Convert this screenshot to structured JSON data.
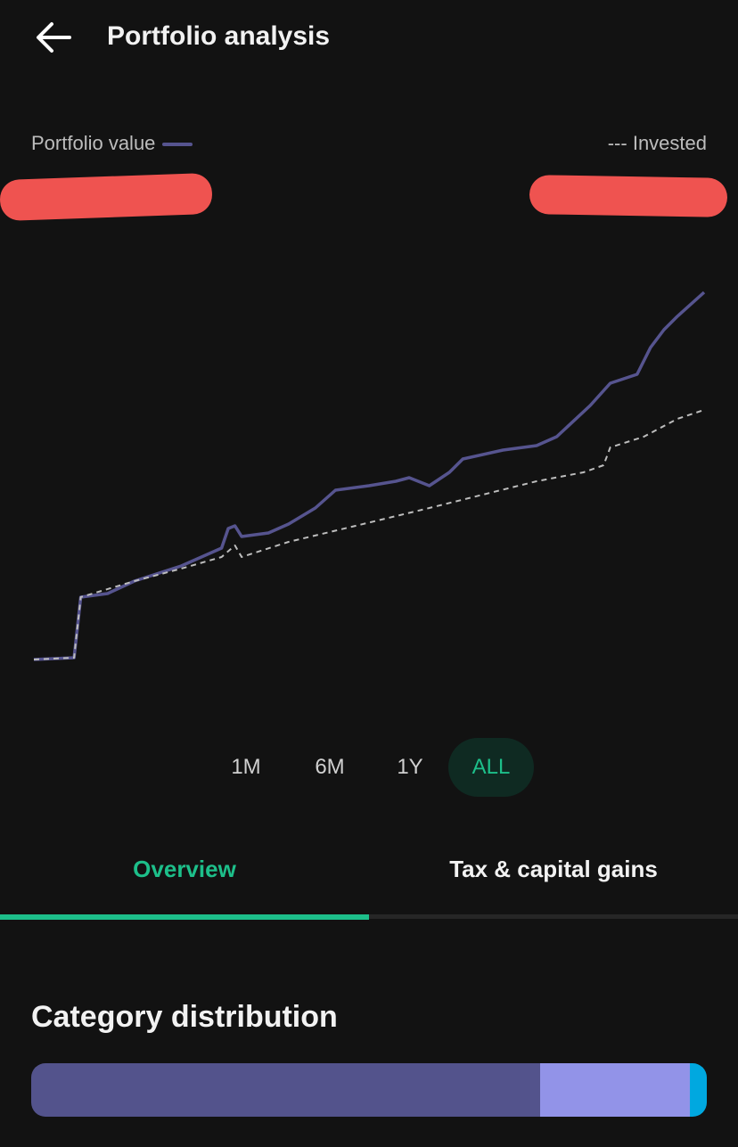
{
  "header": {
    "title": "Portfolio analysis",
    "back_icon": "arrow-left-icon"
  },
  "legend": {
    "portfolio_label": "Portfolio value",
    "invested_label": "--- Invested"
  },
  "colors": {
    "portfolio": "#56548f",
    "invested": "#bdbdbd",
    "accent": "#1dbf8a",
    "redaction": "#ef5350"
  },
  "range_options": [
    {
      "label": "1M"
    },
    {
      "label": "6M"
    },
    {
      "label": "1Y"
    },
    {
      "label": "ALL",
      "active": true
    }
  ],
  "tabs": [
    {
      "label": "Overview",
      "active": true
    },
    {
      "label": "Tax & capital gains"
    }
  ],
  "category": {
    "title": "Category distribution",
    "segments": [
      {
        "percent": 75.3,
        "color": "#53538c"
      },
      {
        "percent": 22.2,
        "color": "#9293e8"
      },
      {
        "percent": 2.5,
        "color": "#00a8e0"
      }
    ]
  },
  "chart_data": {
    "type": "line",
    "title": "",
    "xlabel": "",
    "ylabel": "",
    "grid": false,
    "legend": "top",
    "series": [
      {
        "name": "Portfolio value",
        "style": "solid",
        "color": "#56548f",
        "x": [
          0,
          6,
          7,
          11,
          15,
          22,
          28,
          29,
          30,
          31,
          35,
          38,
          42,
          45,
          50,
          54,
          56,
          59,
          62,
          64,
          70,
          75,
          78,
          83,
          86,
          90,
          92,
          94,
          96,
          100
        ],
        "values": [
          10,
          12,
          80,
          84,
          98,
          115,
          135,
          157,
          160,
          148,
          152,
          162,
          180,
          200,
          205,
          210,
          214,
          205,
          220,
          235,
          245,
          250,
          260,
          295,
          320,
          330,
          360,
          380,
          395,
          422
        ]
      },
      {
        "name": "Invested",
        "style": "dashed",
        "color": "#bdbdbd",
        "x": [
          0,
          6,
          7,
          15,
          22,
          28,
          30,
          31,
          38,
          48,
          59,
          67,
          75,
          82,
          85,
          86,
          91,
          96,
          100
        ],
        "values": [
          10,
          12,
          80,
          98,
          112,
          125,
          138,
          125,
          142,
          160,
          180,
          195,
          210,
          220,
          228,
          248,
          260,
          280,
          290
        ]
      }
    ]
  }
}
